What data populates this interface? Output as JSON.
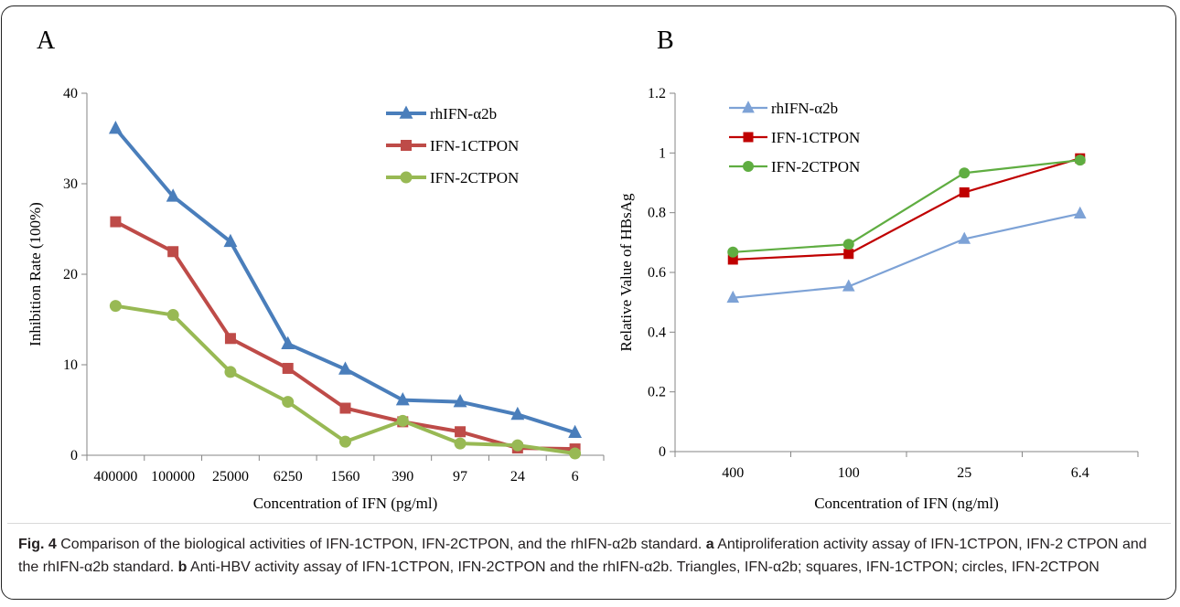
{
  "chart_data": [
    {
      "type": "line",
      "panel": "A",
      "title": "",
      "xlabel": "Concentration of IFN (pg/ml)",
      "ylabel": "Inhibition Rate (100%)",
      "ylim": [
        0,
        40
      ],
      "yticks": [
        0,
        10,
        20,
        30,
        40
      ],
      "categories": [
        "400000",
        "100000",
        "25000",
        "6250",
        "1560",
        "390",
        "97",
        "24",
        "6"
      ],
      "legend_position": "top-right",
      "grid": false,
      "series": [
        {
          "name": "rhIFN-α2b",
          "marker": "triangle",
          "color": "#4a7ebb",
          "values": [
            36.1,
            28.6,
            23.6,
            12.3,
            9.5,
            6.1,
            5.9,
            4.5,
            2.5
          ]
        },
        {
          "name": "IFN-1CTPON",
          "marker": "square",
          "color": "#be4b48",
          "values": [
            25.8,
            22.5,
            12.9,
            9.6,
            5.2,
            3.7,
            2.6,
            0.8,
            0.7
          ]
        },
        {
          "name": "IFN-2CTPON",
          "marker": "circle",
          "color": "#98b954",
          "values": [
            16.5,
            15.5,
            9.2,
            5.9,
            1.5,
            3.8,
            1.3,
            1.1,
            0.2
          ]
        }
      ]
    },
    {
      "type": "line",
      "panel": "B",
      "title": "",
      "xlabel": "Concentration of IFN (ng/ml)",
      "ylabel": "Relative Value of HBsAg",
      "ylim": [
        0,
        1.2
      ],
      "yticks": [
        "0",
        "0.2",
        "0.4",
        "0.6",
        "0.8",
        "1",
        "1.2"
      ],
      "categories": [
        "400",
        "100",
        "25",
        "6.4"
      ],
      "legend_position": "top-left",
      "grid": false,
      "series": [
        {
          "name": "rhIFN-α2b",
          "marker": "triangle",
          "color": "#7da2d6",
          "values": [
            0.515,
            0.553,
            0.712,
            0.797
          ]
        },
        {
          "name": "IFN-1CTPON",
          "marker": "square",
          "color": "#c00000",
          "values": [
            0.643,
            0.662,
            0.868,
            0.982
          ]
        },
        {
          "name": "IFN-2CTPON",
          "marker": "circle",
          "color": "#5fad41",
          "values": [
            0.668,
            0.694,
            0.933,
            0.976
          ]
        }
      ]
    }
  ],
  "caption": {
    "fig_label": "Fig. 4",
    "main": "Comparison of the biological activities of IFN-1CTPON, IFN-2CTPON, and the rhIFN-α2b standard.",
    "a_label": "a",
    "a_text": "Antiproliferation activity assay of IFN-1CTPON, IFN-2 CTPON and the rhIFN-α2b standard.",
    "b_label": "b",
    "b_text": "Anti-HBV activity assay of IFN-1CTPON, IFN-2CTPON and the rhIFN-α2b. Triangles, IFN-α2b; squares, IFN-1CTPON; circles, IFN-2CTPON"
  }
}
